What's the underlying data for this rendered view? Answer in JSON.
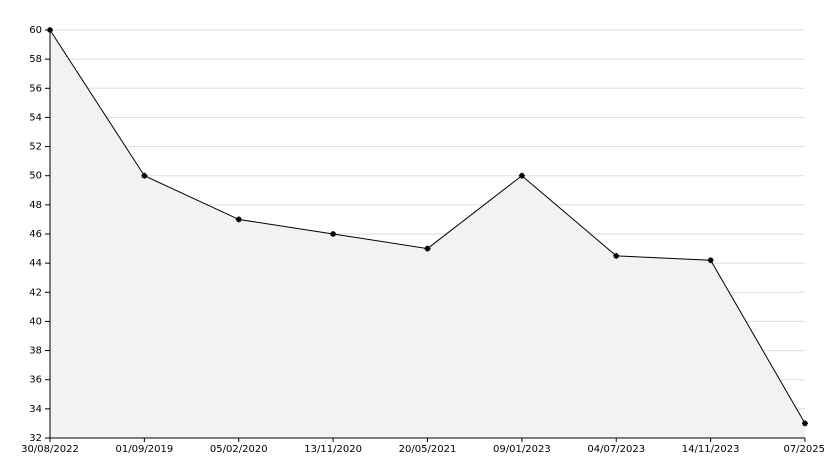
{
  "chart_data": {
    "type": "line",
    "categories": [
      "30/08/2022",
      "01/09/2019",
      "05/02/2020",
      "13/11/2020",
      "20/05/2021",
      "09/01/2023",
      "04/07/2023",
      "14/11/2023",
      "07/2025"
    ],
    "values": [
      60,
      50,
      47,
      46,
      45,
      50,
      44.5,
      44.2,
      33
    ],
    "color": "#000000",
    "fill": "#f2f2f2",
    "ylim": [
      32,
      60
    ],
    "yticks": [
      32,
      34,
      36,
      38,
      40,
      42,
      44,
      46,
      48,
      50,
      52,
      54,
      56,
      58,
      60
    ],
    "grid": true
  }
}
